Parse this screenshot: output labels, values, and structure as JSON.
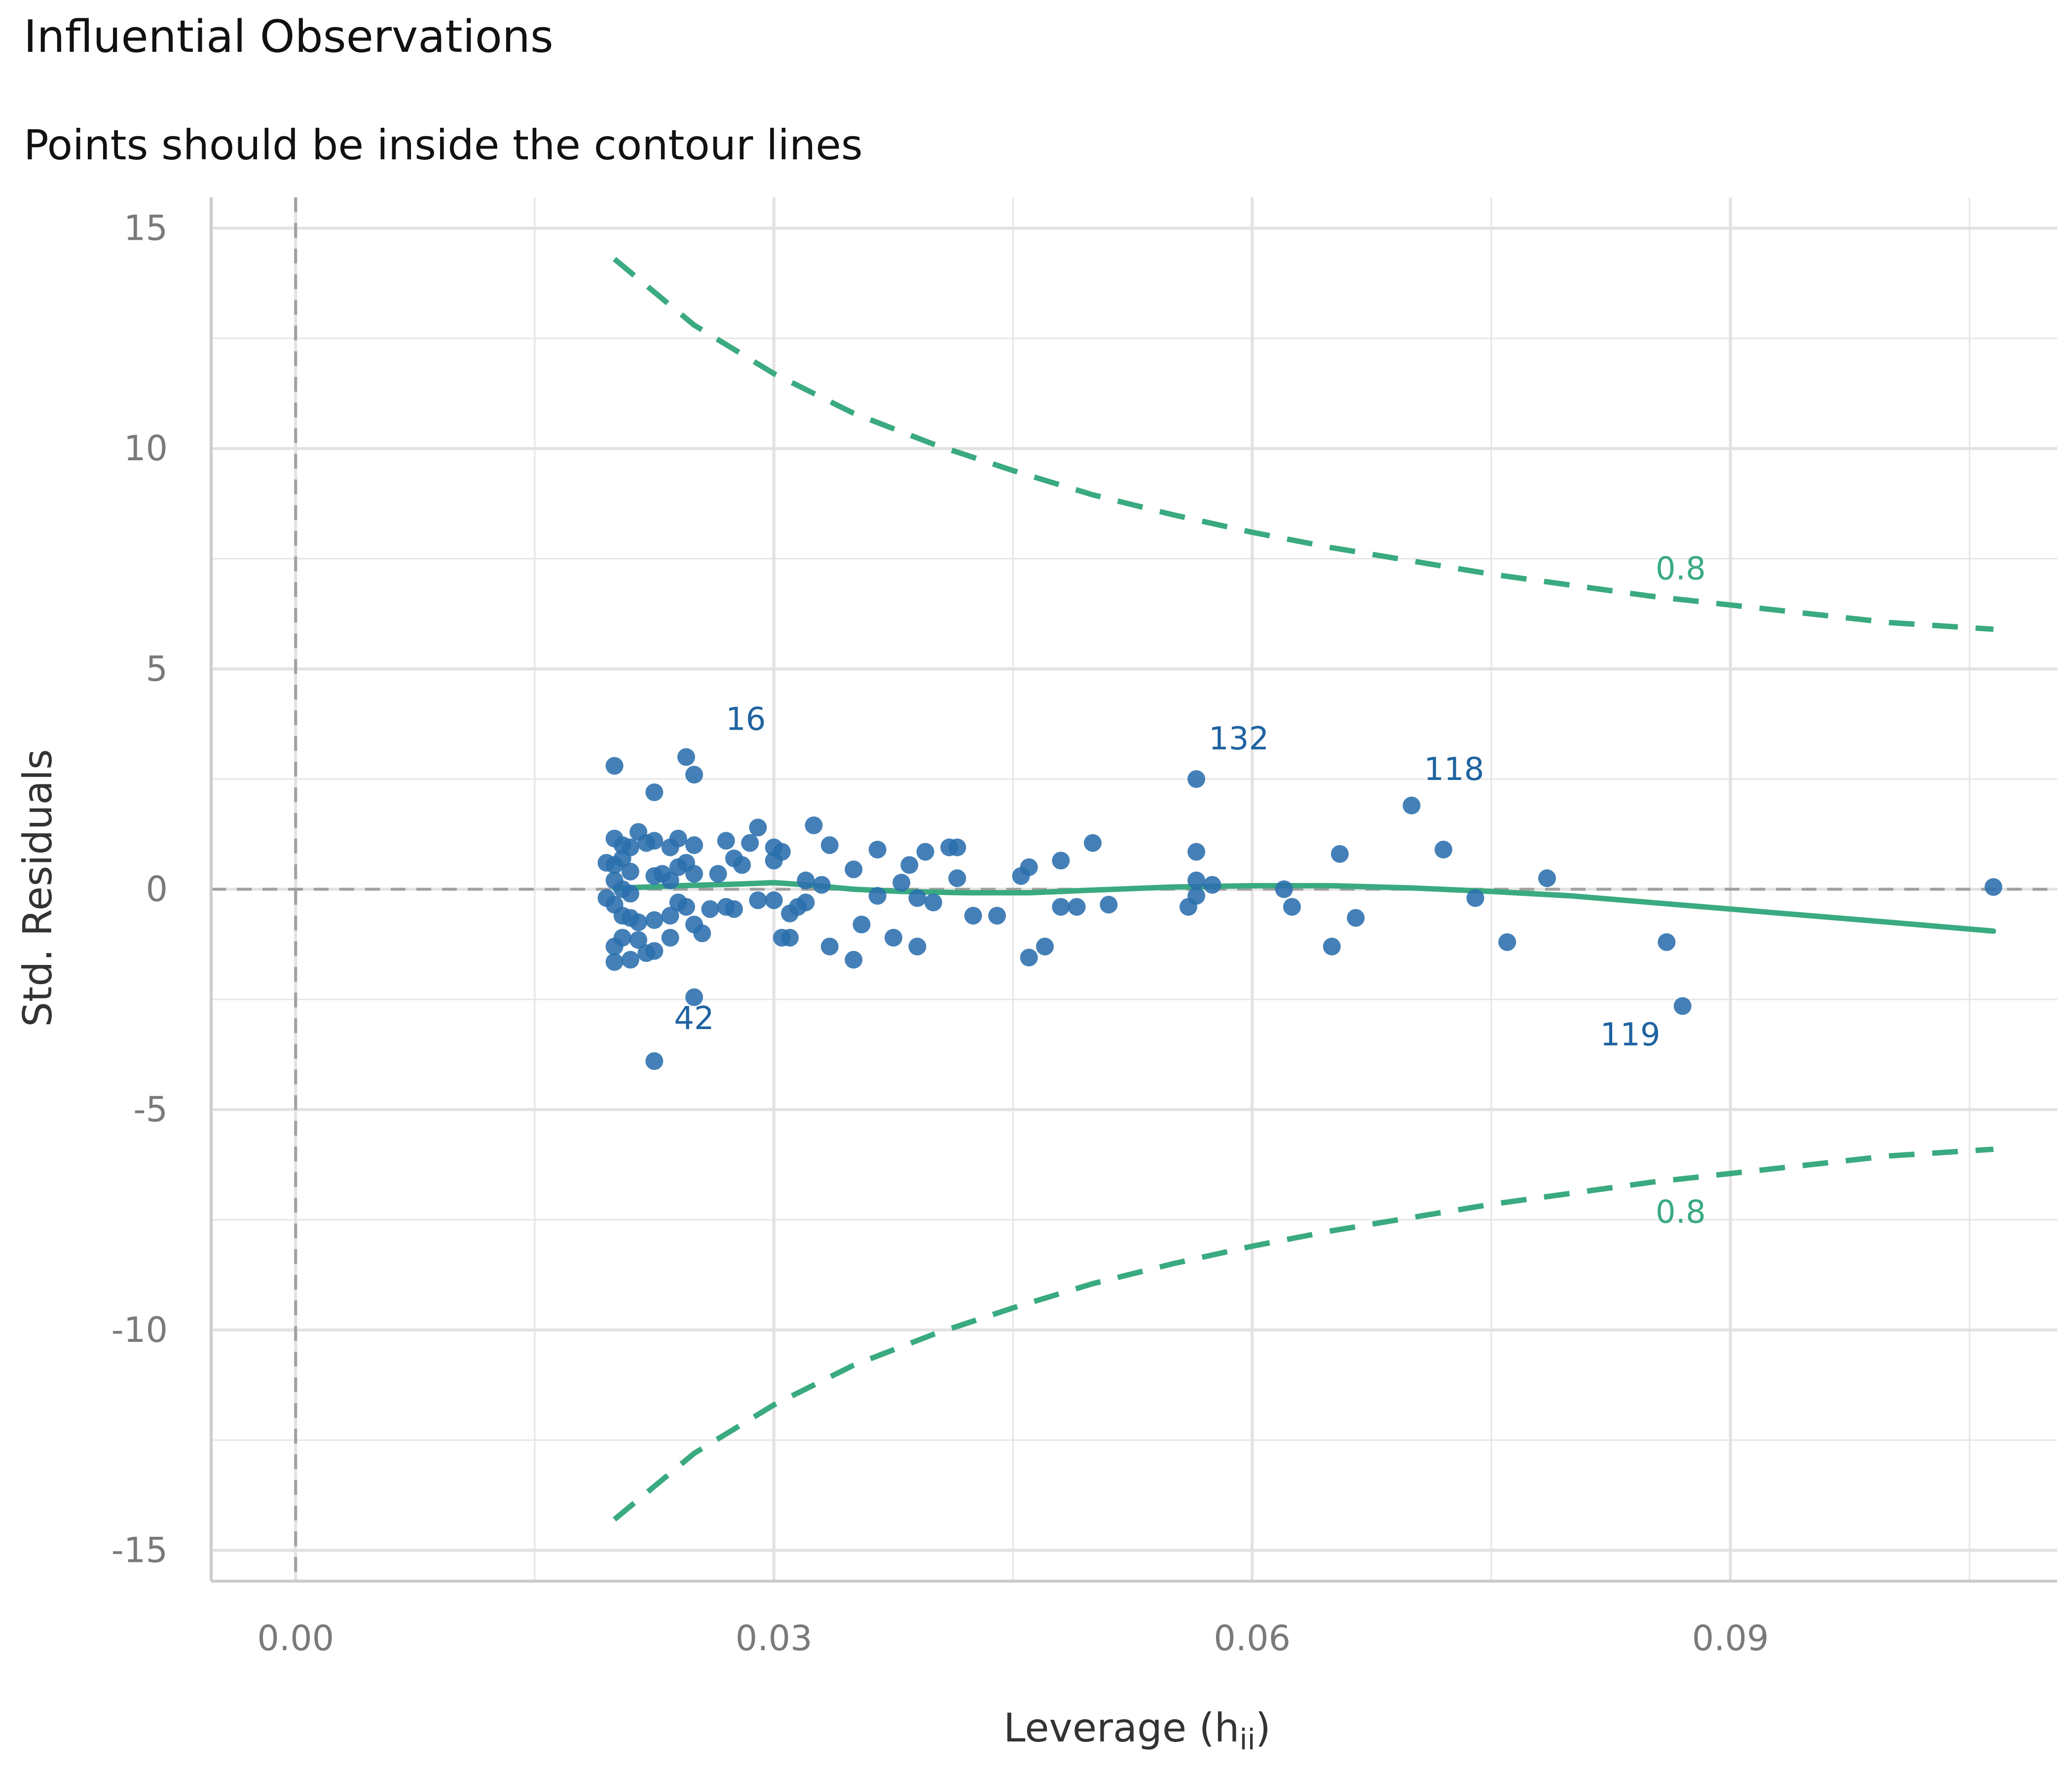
{
  "title": "Influential Observations",
  "subtitle": "Points should be inside the contour lines",
  "colors": {
    "points": "#2a6ead",
    "labels": "#1f63a0",
    "contour": "#3aaa80",
    "loess": "#3aaa80",
    "reference": "#a0a0a0",
    "grid": "#e6e6e6"
  },
  "chart_data": {
    "type": "scatter",
    "xlabel": "Leverage (h",
    "xlabel_sub": "ii",
    "xlabel_close": ")",
    "ylabel": "Std. Residuals",
    "xlim": [
      -0.0053,
      0.1105
    ],
    "ylim": [
      -15.7,
      15.7
    ],
    "x_ticks": [
      0.0,
      0.03,
      0.06,
      0.09
    ],
    "x_tick_labels": [
      "0.00",
      "0.03",
      "0.06",
      "0.09"
    ],
    "y_ticks": [
      15,
      10,
      5,
      0,
      -5,
      -10,
      -15
    ],
    "y_tick_labels": [
      "15",
      "10",
      "5",
      "0",
      "-5",
      "-10",
      "-15"
    ],
    "grid": true,
    "reference_lines": {
      "x": 0,
      "y": 0
    },
    "points": [
      [
        0.02,
        2.8
      ],
      [
        0.0225,
        2.2
      ],
      [
        0.0245,
        3.0
      ],
      [
        0.025,
        2.6
      ],
      [
        0.0225,
        -3.9
      ],
      [
        0.025,
        -2.45
      ],
      [
        0.02,
        1.15
      ],
      [
        0.0205,
        1.0
      ],
      [
        0.021,
        0.95
      ],
      [
        0.0215,
        1.3
      ],
      [
        0.022,
        1.05
      ],
      [
        0.0225,
        1.1
      ],
      [
        0.0235,
        0.95
      ],
      [
        0.024,
        1.15
      ],
      [
        0.025,
        1.0
      ],
      [
        0.02,
        0.55
      ],
      [
        0.0205,
        0.7
      ],
      [
        0.021,
        0.4
      ],
      [
        0.0195,
        0.6
      ],
      [
        0.02,
        0.2
      ],
      [
        0.0205,
        0.0
      ],
      [
        0.021,
        -0.1
      ],
      [
        0.0195,
        -0.2
      ],
      [
        0.02,
        -0.35
      ],
      [
        0.0205,
        -0.6
      ],
      [
        0.021,
        -0.65
      ],
      [
        0.02,
        -1.3
      ],
      [
        0.0205,
        -1.1
      ],
      [
        0.0215,
        -1.15
      ],
      [
        0.022,
        -1.45
      ],
      [
        0.0225,
        -1.4
      ],
      [
        0.02,
        -1.65
      ],
      [
        0.021,
        -1.6
      ],
      [
        0.0235,
        -1.1
      ],
      [
        0.0215,
        -0.75
      ],
      [
        0.0225,
        -0.7
      ],
      [
        0.0235,
        -0.6
      ],
      [
        0.024,
        -0.3
      ],
      [
        0.0245,
        -0.4
      ],
      [
        0.025,
        -0.8
      ],
      [
        0.0255,
        -1.0
      ],
      [
        0.026,
        -0.45
      ],
      [
        0.0225,
        0.3
      ],
      [
        0.023,
        0.35
      ],
      [
        0.0235,
        0.2
      ],
      [
        0.024,
        0.5
      ],
      [
        0.0245,
        0.6
      ],
      [
        0.025,
        0.35
      ],
      [
        0.0265,
        0.35
      ],
      [
        0.0275,
        0.7
      ],
      [
        0.028,
        0.55
      ],
      [
        0.027,
        1.1
      ],
      [
        0.0285,
        1.05
      ],
      [
        0.029,
        1.4
      ],
      [
        0.03,
        0.95
      ],
      [
        0.0305,
        0.85
      ],
      [
        0.03,
        0.65
      ],
      [
        0.027,
        -0.4
      ],
      [
        0.0275,
        -0.45
      ],
      [
        0.029,
        -0.25
      ],
      [
        0.03,
        -0.25
      ],
      [
        0.0305,
        -1.1
      ],
      [
        0.031,
        -1.1
      ],
      [
        0.031,
        -0.55
      ],
      [
        0.0315,
        -0.4
      ],
      [
        0.032,
        -0.3
      ],
      [
        0.032,
        0.2
      ],
      [
        0.0325,
        1.45
      ],
      [
        0.033,
        0.1
      ],
      [
        0.0335,
        1.0
      ],
      [
        0.0335,
        -1.3
      ],
      [
        0.035,
        0.45
      ],
      [
        0.035,
        -1.6
      ],
      [
        0.0355,
        -0.8
      ],
      [
        0.0365,
        0.9
      ],
      [
        0.0365,
        -0.15
      ],
      [
        0.0375,
        -1.1
      ],
      [
        0.038,
        0.15
      ],
      [
        0.0385,
        0.55
      ],
      [
        0.039,
        -0.2
      ],
      [
        0.039,
        -1.3
      ],
      [
        0.0395,
        0.85
      ],
      [
        0.04,
        -0.3
      ],
      [
        0.041,
        0.95
      ],
      [
        0.0415,
        0.95
      ],
      [
        0.0415,
        0.25
      ],
      [
        0.0425,
        -0.6
      ],
      [
        0.044,
        -0.6
      ],
      [
        0.0455,
        0.3
      ],
      [
        0.046,
        0.5
      ],
      [
        0.046,
        -1.55
      ],
      [
        0.047,
        -1.3
      ],
      [
        0.048,
        0.65
      ],
      [
        0.048,
        -0.4
      ],
      [
        0.049,
        -0.4
      ],
      [
        0.05,
        1.05
      ],
      [
        0.051,
        -0.35
      ],
      [
        0.0565,
        2.5
      ],
      [
        0.0565,
        0.85
      ],
      [
        0.0565,
        0.2
      ],
      [
        0.056,
        -0.4
      ],
      [
        0.0565,
        -0.15
      ],
      [
        0.0575,
        0.1
      ],
      [
        0.062,
        0.0
      ],
      [
        0.0625,
        -0.4
      ],
      [
        0.065,
        -1.3
      ],
      [
        0.0655,
        0.8
      ],
      [
        0.0665,
        -0.65
      ],
      [
        0.07,
        1.9
      ],
      [
        0.072,
        0.9
      ],
      [
        0.074,
        -0.2
      ],
      [
        0.076,
        -1.2
      ],
      [
        0.0785,
        0.25
      ],
      [
        0.086,
        -1.2
      ],
      [
        0.087,
        -2.65
      ],
      [
        0.1065,
        0.05
      ]
    ],
    "point_labels": [
      {
        "id": "16",
        "x": 0.0245,
        "y": 3.0
      },
      {
        "id": "42",
        "x": 0.0225,
        "y": -3.9
      },
      {
        "id": "132",
        "x": 0.0565,
        "y": 2.5
      },
      {
        "id": "118",
        "x": 0.07,
        "y": 1.9
      },
      {
        "id": "119",
        "x": 0.087,
        "y": -2.65
      }
    ],
    "contour": {
      "label": "0.8",
      "x": [
        0.02,
        0.025,
        0.03,
        0.035,
        0.04,
        0.045,
        0.05,
        0.055,
        0.06,
        0.065,
        0.07,
        0.075,
        0.08,
        0.085,
        0.09,
        0.095,
        0.1,
        0.1065
      ],
      "upper": [
        14.3,
        12.8,
        11.7,
        10.8,
        10.1,
        9.5,
        8.95,
        8.5,
        8.1,
        7.75,
        7.45,
        7.15,
        6.9,
        6.65,
        6.45,
        6.25,
        6.05,
        5.9
      ]
    },
    "loess": {
      "x": [
        0.02,
        0.022,
        0.024,
        0.026,
        0.028,
        0.03,
        0.032,
        0.035,
        0.038,
        0.042,
        0.046,
        0.05,
        0.055,
        0.06,
        0.065,
        0.07,
        0.075,
        0.08,
        0.085,
        0.09,
        0.095,
        0.1,
        0.1065
      ],
      "y": [
        0.02,
        0.05,
        0.08,
        0.1,
        0.12,
        0.15,
        0.1,
        0.0,
        -0.05,
        -0.08,
        -0.08,
        -0.02,
        0.05,
        0.08,
        0.08,
        0.03,
        -0.05,
        -0.15,
        -0.3,
        -0.45,
        -0.6,
        -0.75,
        -0.95
      ]
    }
  }
}
